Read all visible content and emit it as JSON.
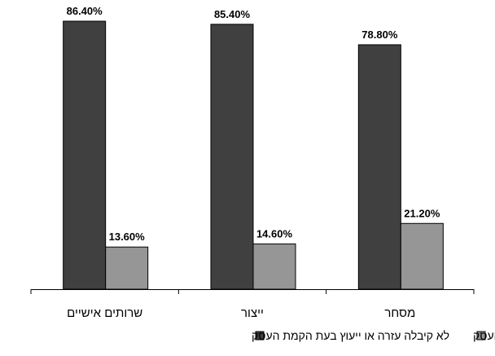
{
  "chart_data": {
    "type": "bar",
    "categories": [
      "שרותים אישיים",
      "ייצור",
      "מסחר"
    ],
    "series": [
      {
        "name": "לא קיבלה עזרה או ייעוץ בעת הקמת העסק",
        "values": [
          86.4,
          85.4,
          78.8
        ],
        "labels": [
          "86.40%",
          "85.40%",
          "78.80%"
        ],
        "color": "#404040"
      },
      {
        "name": "קיבלה עזרה או ייעוץ בעת הקמת העסק",
        "values": [
          13.6,
          14.6,
          21.2
        ],
        "labels": [
          "13.60%",
          "14.60%",
          "21.20%"
        ],
        "color": "#969696"
      }
    ],
    "ylim": [
      0,
      100
    ],
    "grid": false,
    "legend_position": "bottom"
  }
}
